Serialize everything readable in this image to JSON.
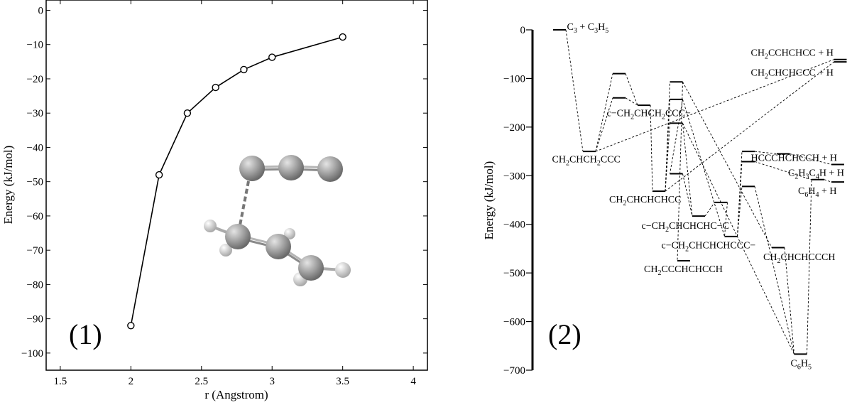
{
  "chart_data": [
    {
      "type": "line",
      "panel_label": "(1)",
      "xlabel": "r (Angstrom)",
      "ylabel": "Energy (kJ/mol)",
      "xlim": [
        1.4,
        4.1
      ],
      "ylim": [
        -105,
        3
      ],
      "x_ticks": [
        1.5,
        2,
        2.5,
        3,
        3.5,
        4
      ],
      "y_ticks": [
        0,
        -10,
        -20,
        -30,
        -40,
        -50,
        -60,
        -70,
        -80,
        -90,
        -100
      ],
      "x_tick_labels": [
        "1.5",
        "2",
        "2.5",
        "3",
        "3.5",
        "4"
      ],
      "y_tick_labels": [
        "0",
        "−10",
        "−20",
        "−30",
        "−40",
        "−50",
        "−60",
        "−70",
        "−80",
        "−90",
        "−100"
      ],
      "series": [
        {
          "marker": "open-circle",
          "color": "#000000",
          "x": [
            2.0,
            2.2,
            2.4,
            2.6,
            2.8,
            3.0,
            3.5
          ],
          "y": [
            -92,
            -48,
            -30,
            -22.5,
            -17.3,
            -13.7,
            -7.8
          ]
        }
      ],
      "inset": "molecular-structure"
    },
    {
      "type": "energy-level-diagram",
      "panel_label": "(2)",
      "ylabel": "Energy (kJ/mol)",
      "ylim": [
        -700,
        0
      ],
      "y_ticks": [
        0,
        -100,
        -200,
        -300,
        -400,
        -500,
        -600,
        -700
      ],
      "y_tick_labels": [
        "0",
        "−100",
        "−200",
        "−300",
        "−400",
        "−500",
        "−600",
        "−700"
      ],
      "levels": [
        {
          "id": "l0",
          "energy": 0,
          "pos": 0.3
        },
        {
          "id": "l1",
          "energy": -250,
          "pos": 0.9
        },
        {
          "id": "l2",
          "energy": -90,
          "pos": 1.5
        },
        {
          "id": "l3",
          "energy": -140,
          "pos": 1.5
        },
        {
          "id": "l4",
          "energy": -155,
          "pos": 2.0
        },
        {
          "id": "l5",
          "energy": -332,
          "pos": 2.3
        },
        {
          "id": "l6",
          "energy": -107,
          "pos": 2.65
        },
        {
          "id": "l7",
          "energy": -143,
          "pos": 2.65
        },
        {
          "id": "l8",
          "energy": -192,
          "pos": 2.65
        },
        {
          "id": "l9",
          "energy": -296,
          "pos": 2.65
        },
        {
          "id": "l10",
          "energy": -475,
          "pos": 2.8
        },
        {
          "id": "l11",
          "energy": -383,
          "pos": 3.1
        },
        {
          "id": "l12",
          "energy": -355,
          "pos": 3.55
        },
        {
          "id": "l13",
          "energy": -425,
          "pos": 3.75
        },
        {
          "id": "l14",
          "energy": -250,
          "pos": 4.1
        },
        {
          "id": "l15",
          "energy": -271,
          "pos": 4.1
        },
        {
          "id": "l16",
          "energy": -322,
          "pos": 4.1
        },
        {
          "id": "l17",
          "energy": -448,
          "pos": 4.7
        },
        {
          "id": "l18",
          "energy": -255,
          "pos": 4.8
        },
        {
          "id": "l19",
          "energy": -667,
          "pos": 5.15
        },
        {
          "id": "l20",
          "energy": -308,
          "pos": 5.5
        },
        {
          "id": "l21",
          "energy": -277,
          "pos": 5.9
        },
        {
          "id": "l22",
          "energy": -313,
          "pos": 5.9
        },
        {
          "id": "l23",
          "energy": -61,
          "pos": 5.95
        },
        {
          "id": "l24",
          "energy": -66,
          "pos": 5.95
        }
      ],
      "connections": [
        [
          "l0",
          "l1"
        ],
        [
          "l1",
          "l2"
        ],
        [
          "l1",
          "l3"
        ],
        [
          "l2",
          "l4"
        ],
        [
          "l3",
          "l4"
        ],
        [
          "l4",
          "l5"
        ],
        [
          "l1",
          "l23"
        ],
        [
          "l5",
          "l24"
        ],
        [
          "l5",
          "l6"
        ],
        [
          "l5",
          "l7"
        ],
        [
          "l5",
          "l8"
        ],
        [
          "l6",
          "l10"
        ],
        [
          "l7",
          "l9"
        ],
        [
          "l8",
          "l11"
        ],
        [
          "l9",
          "l11"
        ],
        [
          "l11",
          "l12"
        ],
        [
          "l12",
          "l13"
        ],
        [
          "l13",
          "l14"
        ],
        [
          "l13",
          "l15"
        ],
        [
          "l13",
          "l16"
        ],
        [
          "l7",
          "l13"
        ],
        [
          "l6",
          "l17"
        ],
        [
          "l14",
          "l18"
        ],
        [
          "l18",
          "l21"
        ],
        [
          "l15",
          "l20"
        ],
        [
          "l20",
          "l22"
        ],
        [
          "l16",
          "l19"
        ],
        [
          "l19",
          "l20"
        ],
        [
          "l17",
          "l19"
        ],
        [
          "l8",
          "l19"
        ]
      ],
      "labels": [
        {
          "parts": [
            [
              "C",
              ""
            ],
            [
              "3",
              "sub"
            ],
            [
              " + C",
              ""
            ],
            [
              "3",
              "sub"
            ],
            [
              "H",
              ""
            ],
            [
              "5",
              "sub"
            ]
          ],
          "level": "l0",
          "at": [
            0.45,
            7
          ]
        },
        {
          "parts": [
            [
              "CH",
              ""
            ],
            [
              "2",
              "sub"
            ],
            [
              "CHCH",
              ""
            ],
            [
              "2",
              "sub"
            ],
            [
              "CCC",
              ""
            ]
          ],
          "level": "l1",
          "at": [
            0.15,
            -265
          ]
        },
        {
          "parts": [
            [
              "c−CH",
              ""
            ],
            [
              "2",
              "sub"
            ],
            [
              "CHCH",
              ""
            ],
            [
              "2",
              "sub"
            ],
            [
              "CCC−",
              ""
            ]
          ],
          "level": "l4",
          "at": [
            1.25,
            -170
          ]
        },
        {
          "parts": [
            [
              "CH",
              ""
            ],
            [
              "2",
              "sub"
            ],
            [
              "CHCHCHCC",
              ""
            ]
          ],
          "level": "l5",
          "at": [
            1.3,
            -348
          ]
        },
        {
          "parts": [
            [
              "c−CH",
              ""
            ],
            [
              "2",
              "sub"
            ],
            [
              "CHCHCHC−C",
              ""
            ]
          ],
          "level": "l11",
          "at": [
            1.95,
            -402
          ]
        },
        {
          "parts": [
            [
              "c−CH",
              ""
            ],
            [
              "2",
              "sub"
            ],
            [
              "CHCHCHCCC−",
              ""
            ]
          ],
          "level": "l13",
          "at": [
            2.35,
            -442
          ]
        },
        {
          "parts": [
            [
              "CH",
              ""
            ],
            [
              "2",
              "sub"
            ],
            [
              "CCCHCHCCH",
              ""
            ]
          ],
          "level": "l10",
          "at": [
            2.0,
            -491
          ]
        },
        {
          "parts": [
            [
              "HCCCHCHCCH + H",
              ""
            ]
          ],
          "level": "l14",
          "at": [
            4.15,
            -262
          ]
        },
        {
          "parts": [
            [
              "C",
              ""
            ],
            [
              "2",
              "sub"
            ],
            [
              "H",
              ""
            ],
            [
              "3",
              "sub"
            ],
            [
              "C",
              ""
            ],
            [
              "4",
              "sub"
            ],
            [
              "H + H",
              ""
            ]
          ],
          "level": "l20",
          "at": [
            4.9,
            -293
          ]
        },
        {
          "parts": [
            [
              "C",
              ""
            ],
            [
              "6",
              "sub"
            ],
            [
              "H",
              ""
            ],
            [
              "4",
              "sub"
            ],
            [
              " + H",
              ""
            ]
          ],
          "level": "l22",
          "at": [
            5.1,
            -330
          ]
        },
        {
          "parts": [
            [
              "CH",
              ""
            ],
            [
              "2",
              "sub"
            ],
            [
              "CHCHCCCH",
              ""
            ]
          ],
          "level": "l17",
          "at": [
            4.4,
            -466
          ]
        },
        {
          "parts": [
            [
              "C",
              ""
            ],
            [
              "6",
              "sub"
            ],
            [
              "H",
              ""
            ],
            [
              "5",
              "sub"
            ]
          ],
          "level": "l19",
          "at": [
            4.95,
            -685
          ]
        },
        {
          "parts": [
            [
              "CH",
              ""
            ],
            [
              "2",
              "sub"
            ],
            [
              "CCHCHCC + H",
              ""
            ]
          ],
          "level": "l23",
          "at": [
            4.15,
            -46
          ]
        },
        {
          "parts": [
            [
              "CH",
              ""
            ],
            [
              "2",
              "sub"
            ],
            [
              "CHCHCCC + H",
              ""
            ]
          ],
          "level": "l24",
          "at": [
            4.15,
            -87
          ]
        }
      ]
    }
  ]
}
